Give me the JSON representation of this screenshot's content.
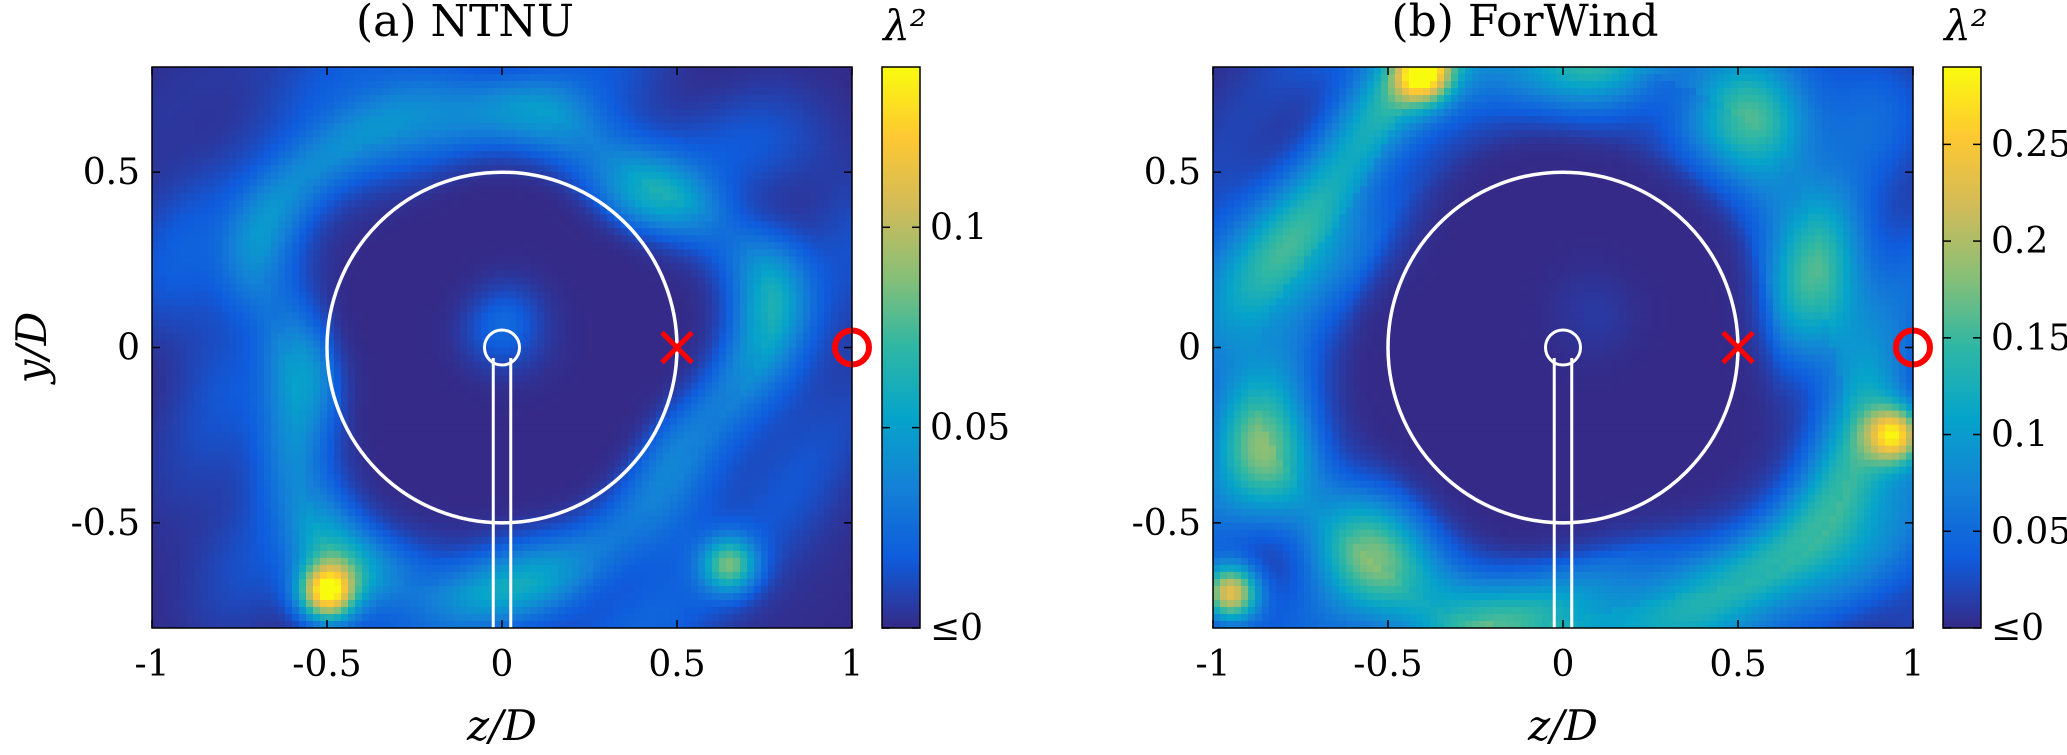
{
  "chart_data": [
    {
      "type": "heatmap",
      "title": "(a) NTNU",
      "xlabel": "z/D",
      "ylabel": "y/D",
      "xlim": [
        -1,
        1
      ],
      "ylim": [
        -0.8,
        0.8
      ],
      "x_ticks": [
        "-1",
        "-0.5",
        "0",
        "0.5",
        "1"
      ],
      "x_tick_values": [
        -1,
        -0.5,
        0,
        0.5,
        1
      ],
      "y_ticks": [
        "-0.5",
        "0",
        "0.5"
      ],
      "y_tick_values": [
        -0.5,
        0,
        0.5
      ],
      "colorbar": {
        "label": "λ²",
        "range": [
          0,
          0.14
        ],
        "ticks": [
          "≤0",
          "0.05",
          "0.1"
        ],
        "tick_values": [
          0,
          0.05,
          0.1
        ]
      },
      "colormap": [
        "#352a87",
        "#0f5cdd",
        "#1481d6",
        "#06a4ca",
        "#2eb7a4",
        "#87bf77",
        "#d1bb59",
        "#fec832",
        "#f9fb0e"
      ],
      "field": {
        "ring_radius": 0.68,
        "ring_width": 0.12,
        "ring_peak": 0.055,
        "inner_radius": 0.5,
        "hub_spot": {
          "z": 0.02,
          "y": 0.05,
          "value": 0.035
        },
        "hot_spots": [
          {
            "z": -0.5,
            "y": -0.7,
            "value": 0.12
          },
          {
            "z": 0.65,
            "y": -0.62,
            "value": 0.07
          }
        ]
      },
      "overlay": {
        "rotor_circle": {
          "center_z": 0,
          "center_y": 0,
          "radius": 0.5,
          "color": "#ffffff"
        },
        "hub_circle": {
          "center_z": 0,
          "center_y": 0,
          "radius": 0.05,
          "color": "#ffffff"
        },
        "tower": {
          "z_left": -0.025,
          "z_right": 0.025,
          "y_top": -0.03,
          "color": "#ffffff"
        },
        "cross_marker": {
          "z": 0.5,
          "y": 0,
          "color": "#ff0000"
        },
        "circle_marker": {
          "z": 1.0,
          "y": 0,
          "color": "#ff0000"
        }
      }
    },
    {
      "type": "heatmap",
      "title": "(b) ForWind",
      "xlabel": "z/D",
      "ylabel": "",
      "xlim": [
        -1,
        1
      ],
      "ylim": [
        -0.8,
        0.8
      ],
      "x_ticks": [
        "-1",
        "-0.5",
        "0",
        "0.5",
        "1"
      ],
      "x_tick_values": [
        -1,
        -0.5,
        0,
        0.5,
        1
      ],
      "y_ticks": [
        "-0.5",
        "0",
        "0.5"
      ],
      "y_tick_values": [
        -0.5,
        0,
        0.5
      ],
      "colorbar": {
        "label": "λ²",
        "range": [
          0,
          0.29
        ],
        "ticks": [
          "≤0",
          "0.05",
          "0.1",
          "0.15",
          "0.2",
          "0.25"
        ],
        "tick_values": [
          0,
          0.05,
          0.1,
          0.15,
          0.2,
          0.25
        ]
      },
      "colormap": [
        "#352a87",
        "#0f5cdd",
        "#1481d6",
        "#06a4ca",
        "#2eb7a4",
        "#87bf77",
        "#d1bb59",
        "#fec832",
        "#f9fb0e"
      ],
      "field": {
        "ring_radius": 0.82,
        "ring_width": 0.16,
        "ring_peak": 0.16,
        "inner_radius": 0.62,
        "hub_spot": {
          "z": 0.08,
          "y": 0.1,
          "value": 0.02
        },
        "hot_spots": [
          {
            "z": -0.95,
            "y": -0.7,
            "value": 0.22
          },
          {
            "z": 0.95,
            "y": -0.25,
            "value": 0.2
          },
          {
            "z": -0.4,
            "y": 0.78,
            "value": 0.2
          }
        ]
      },
      "overlay": {
        "rotor_circle": {
          "center_z": 0,
          "center_y": 0,
          "radius": 0.5,
          "color": "#ffffff"
        },
        "hub_circle": {
          "center_z": 0,
          "center_y": 0,
          "radius": 0.05,
          "color": "#ffffff"
        },
        "tower": {
          "z_left": -0.025,
          "z_right": 0.025,
          "y_top": -0.03,
          "color": "#ffffff"
        },
        "cross_marker": {
          "z": 0.5,
          "y": 0,
          "color": "#ff0000"
        },
        "circle_marker": {
          "z": 1.0,
          "y": 0,
          "color": "#ff0000"
        }
      }
    }
  ]
}
